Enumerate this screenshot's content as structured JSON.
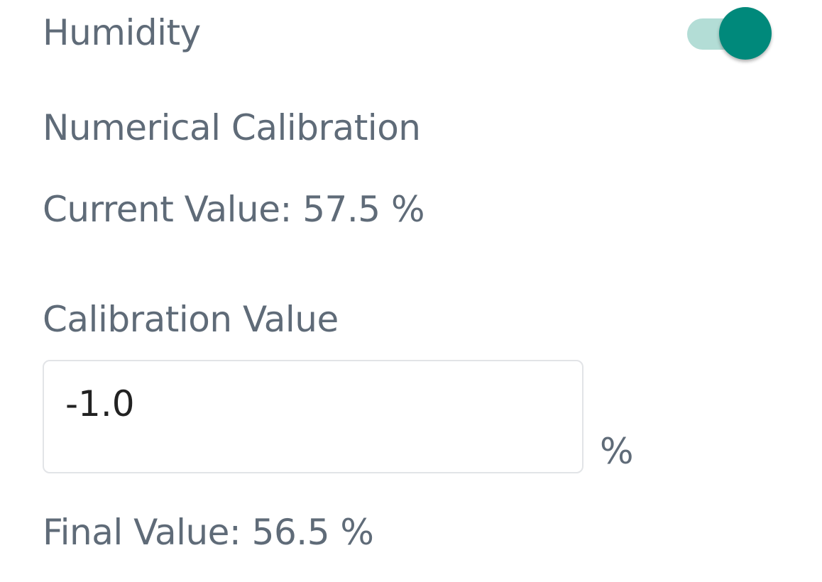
{
  "section": {
    "title": "Humidity",
    "toggle_on": true
  },
  "calibration": {
    "heading": "Numerical Calibration",
    "current_value": "Current Value: 57.5 %",
    "field_label": "Calibration Value",
    "field_value": "-1.0",
    "field_unit": "%",
    "final_value": "Final Value: 56.5 %"
  }
}
